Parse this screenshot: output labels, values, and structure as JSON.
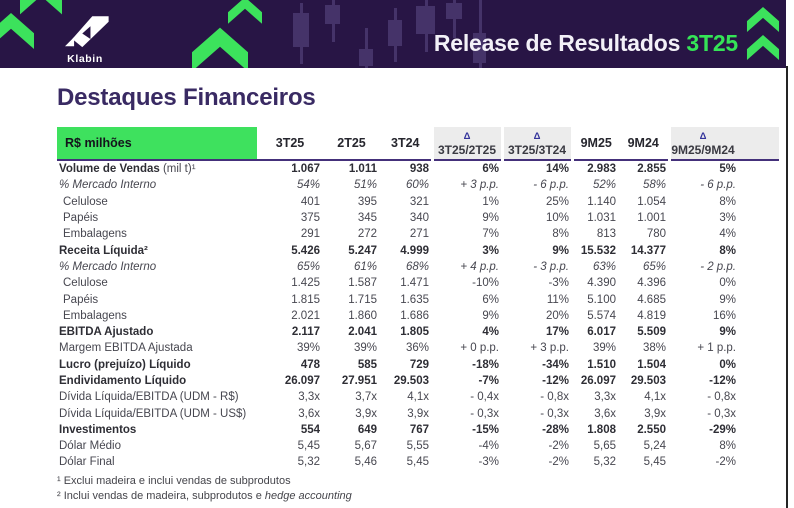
{
  "banner": {
    "logo_text": "Klabin",
    "title_prefix": "Release de Resultados",
    "title_period": "3T25"
  },
  "page": {
    "title": "Destaques Financeiros"
  },
  "table": {
    "unit_label": "R$ milhões",
    "delta_symbol": "Δ",
    "columns": [
      {
        "label": "3T25",
        "delta": false
      },
      {
        "label": "2T25",
        "delta": false
      },
      {
        "label": "3T24",
        "delta": false
      },
      {
        "label": "3T25/2T25",
        "delta": true
      },
      {
        "label": "3T25/3T24",
        "delta": true
      },
      {
        "label": "9M25",
        "delta": false
      },
      {
        "label": "9M24",
        "delta": false
      },
      {
        "label": "9M25/9M24",
        "delta": true
      }
    ],
    "rows": [
      {
        "label": "Volume de Vendas",
        "note": " (mil t)¹",
        "style": "bold",
        "values": [
          "1.067",
          "1.011",
          "938",
          "6%",
          "14%",
          "2.983",
          "2.855",
          "5%"
        ]
      },
      {
        "label": "% Mercado Interno",
        "note": "",
        "style": "italic",
        "values": [
          "54%",
          "51%",
          "60%",
          "+ 3 p.p.",
          "- 6 p.p.",
          "52%",
          "58%",
          "- 6 p.p."
        ]
      },
      {
        "label": "Celulose",
        "note": "",
        "style": "indent",
        "values": [
          "401",
          "395",
          "321",
          "1%",
          "25%",
          "1.140",
          "1.054",
          "8%"
        ]
      },
      {
        "label": "Papéis",
        "note": "",
        "style": "indent",
        "values": [
          "375",
          "345",
          "340",
          "9%",
          "10%",
          "1.031",
          "1.001",
          "3%"
        ]
      },
      {
        "label": "Embalagens",
        "note": "",
        "style": "indent",
        "values": [
          "291",
          "272",
          "271",
          "7%",
          "8%",
          "813",
          "780",
          "4%"
        ]
      },
      {
        "label": "Receita Líquida²",
        "note": "",
        "style": "bold",
        "values": [
          "5.426",
          "5.247",
          "4.999",
          "3%",
          "9%",
          "15.532",
          "14.377",
          "8%"
        ]
      },
      {
        "label": "% Mercado Interno",
        "note": "",
        "style": "italic",
        "values": [
          "65%",
          "61%",
          "68%",
          "+ 4 p.p.",
          "- 3 p.p.",
          "63%",
          "65%",
          "- 2 p.p."
        ]
      },
      {
        "label": "Celulose",
        "note": "",
        "style": "indent",
        "values": [
          "1.425",
          "1.587",
          "1.471",
          "-10%",
          "-3%",
          "4.390",
          "4.396",
          "0%"
        ]
      },
      {
        "label": "Papéis",
        "note": "",
        "style": "indent",
        "values": [
          "1.815",
          "1.715",
          "1.635",
          "6%",
          "11%",
          "5.100",
          "4.685",
          "9%"
        ]
      },
      {
        "label": "Embalagens",
        "note": "",
        "style": "indent",
        "values": [
          "2.021",
          "1.860",
          "1.686",
          "9%",
          "20%",
          "5.574",
          "4.819",
          "16%"
        ]
      },
      {
        "label": "EBITDA Ajustado",
        "note": "",
        "style": "bold",
        "values": [
          "2.117",
          "2.041",
          "1.805",
          "4%",
          "17%",
          "6.017",
          "5.509",
          "9%"
        ]
      },
      {
        "label": "Margem EBITDA Ajustada",
        "note": "",
        "style": "normal",
        "values": [
          "39%",
          "39%",
          "36%",
          "+ 0 p.p.",
          "+ 3 p.p.",
          "39%",
          "38%",
          "+ 1 p.p."
        ]
      },
      {
        "label": "Lucro (prejuízo) Líquido",
        "note": "",
        "style": "bold",
        "values": [
          "478",
          "585",
          "729",
          "-18%",
          "-34%",
          "1.510",
          "1.504",
          "0%"
        ]
      },
      {
        "label": "Endividamento Líquido",
        "note": "",
        "style": "bold",
        "values": [
          "26.097",
          "27.951",
          "29.503",
          "-7%",
          "-12%",
          "26.097",
          "29.503",
          "-12%"
        ]
      },
      {
        "label": "Dívida Líquida/EBITDA (UDM - R$)",
        "note": "",
        "style": "normal",
        "values": [
          "3,3x",
          "3,7x",
          "4,1x",
          "- 0,4x",
          "- 0,8x",
          "3,3x",
          "4,1x",
          "- 0,8x"
        ]
      },
      {
        "label": "Dívida Líquida/EBITDA (UDM - US$)",
        "note": "",
        "style": "normal",
        "values": [
          "3,6x",
          "3,9x",
          "3,9x",
          "- 0,3x",
          "- 0,3x",
          "3,6x",
          "3,9x",
          "- 0,3x"
        ]
      },
      {
        "label": "Investimentos",
        "note": "",
        "style": "bold",
        "values": [
          "554",
          "649",
          "767",
          "-15%",
          "-28%",
          "1.808",
          "2.550",
          "-29%"
        ]
      },
      {
        "label": "Dólar Médio",
        "note": "",
        "style": "normal",
        "values": [
          "5,45",
          "5,67",
          "5,55",
          "-4%",
          "-2%",
          "5,65",
          "5,24",
          "8%"
        ]
      },
      {
        "label": "Dólar Final",
        "note": "",
        "style": "normal",
        "values": [
          "5,32",
          "5,46",
          "5,45",
          "-3%",
          "-2%",
          "5,32",
          "5,45",
          "-2%"
        ]
      }
    ]
  },
  "footnotes": [
    {
      "text": "¹ Exclui madeira e inclui vendas de subprodutos",
      "italic": ""
    },
    {
      "text": "² Inclui vendas de madeira, subprodutos e ",
      "italic": "hedge accounting"
    }
  ],
  "colors": {
    "brand_green": "#3CE25C",
    "banner_purple": "#281545",
    "candlestick_purple": "#453369",
    "heading_purple": "#392A63",
    "delta_header_bg": "#ECECEC",
    "header_rule_purple": "#44307A",
    "green_header_cell": "#3EE15E"
  }
}
